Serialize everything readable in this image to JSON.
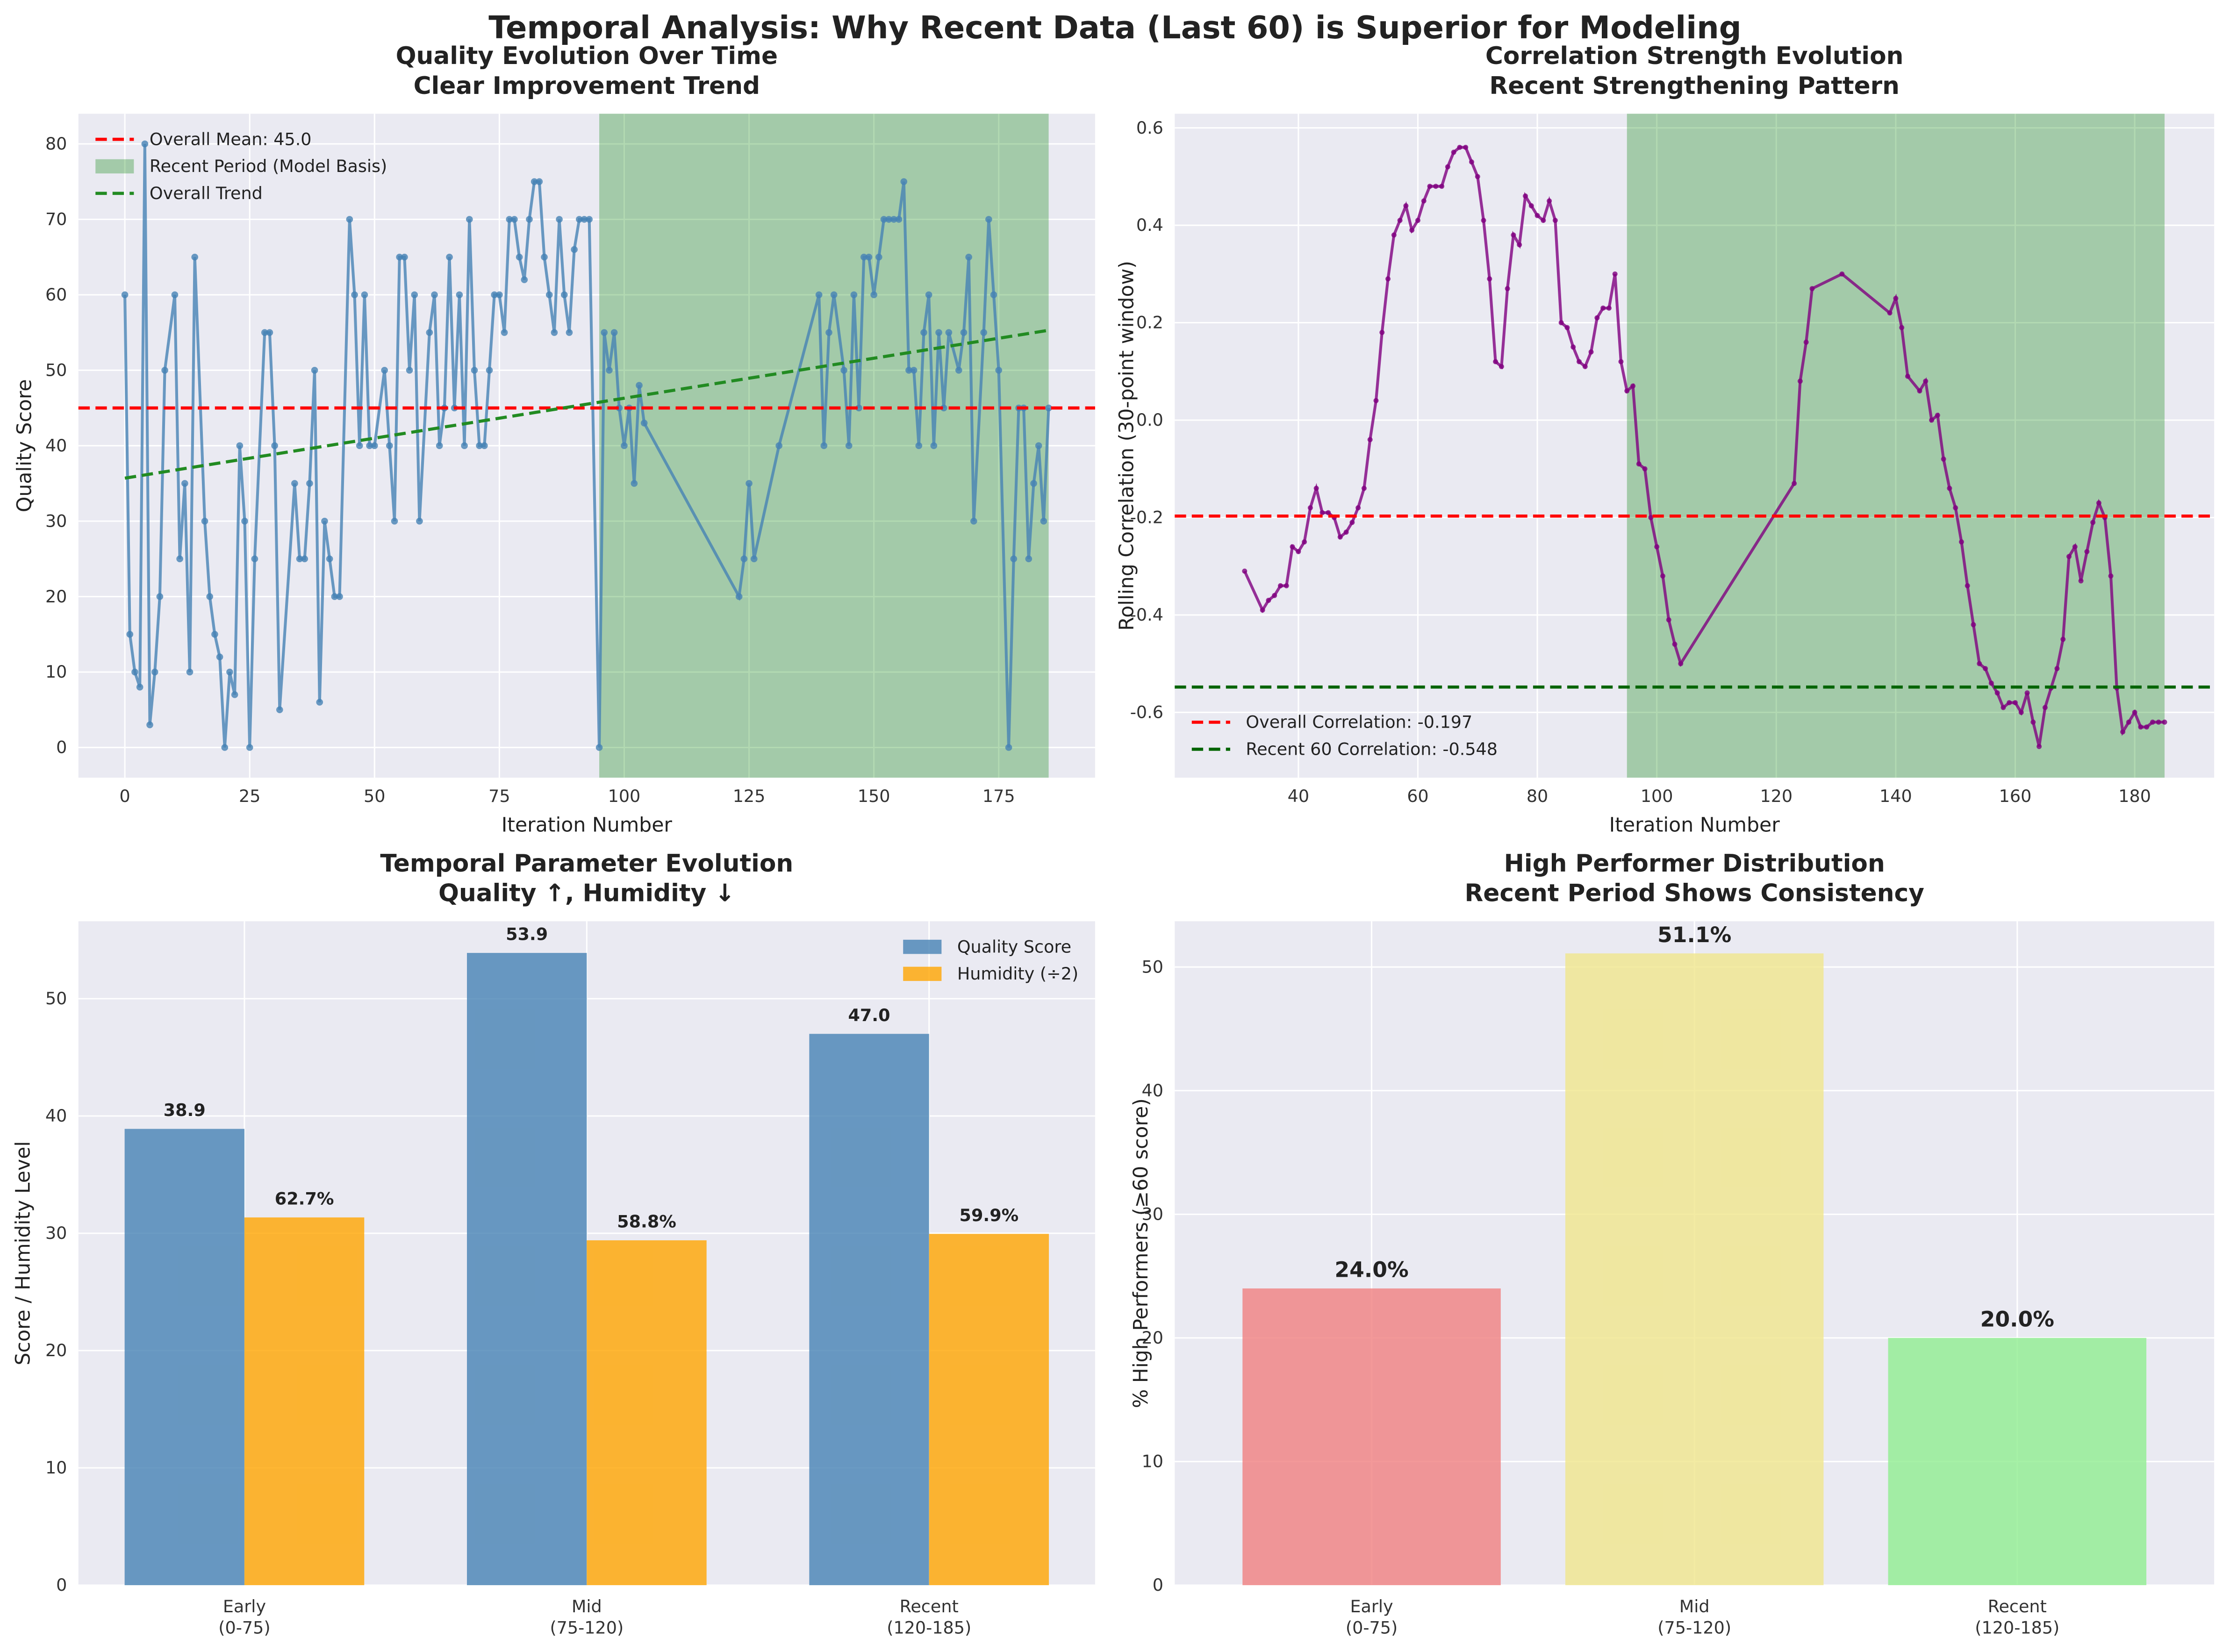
{
  "title": "Temporal Analysis: Why Recent Data (Last 60) is Superior for Modeling",
  "chart_data": [
    {
      "type": "line",
      "title": "Quality Evolution Over Time\nClear Improvement Trend",
      "xlabel": "Iteration Number",
      "ylabel": "Quality Score",
      "x": [
        0,
        1,
        2,
        3,
        4,
        5,
        6,
        7,
        8,
        10,
        11,
        12,
        13,
        14,
        16,
        17,
        18,
        19,
        20,
        21,
        22,
        23,
        24,
        25,
        26,
        28,
        29,
        30,
        31,
        34,
        35,
        36,
        37,
        38,
        39,
        40,
        41,
        42,
        43,
        45,
        46,
        47,
        48,
        49,
        50,
        52,
        53,
        54,
        55,
        56,
        57,
        58,
        59,
        61,
        62,
        63,
        64,
        65,
        66,
        67,
        68,
        69,
        70,
        71,
        72,
        73,
        74,
        75,
        76,
        77,
        78,
        79,
        80,
        81,
        82,
        83,
        84,
        85,
        86,
        87,
        88,
        89,
        90,
        91,
        92,
        93,
        95,
        96,
        97,
        98,
        99,
        100,
        101,
        102,
        103,
        104,
        123,
        124,
        125,
        126,
        131,
        139,
        140,
        141,
        142,
        144,
        145,
        146,
        147,
        148,
        149,
        150,
        151,
        152,
        153,
        154,
        155,
        156,
        157,
        158,
        159,
        160,
        161,
        162,
        163,
        164,
        165,
        167,
        168,
        169,
        170,
        172,
        173,
        174,
        175,
        177,
        178,
        179,
        180,
        181,
        182,
        183,
        184,
        185
      ],
      "values": [
        60,
        15,
        10,
        8,
        80,
        3,
        10,
        20,
        50,
        60,
        25,
        35,
        10,
        65,
        30,
        20,
        15,
        12,
        0,
        10,
        7,
        40,
        30,
        0,
        25,
        55,
        55,
        40,
        5,
        35,
        25,
        25,
        35,
        50,
        6,
        30,
        25,
        20,
        20,
        70,
        60,
        40,
        60,
        40,
        40,
        50,
        40,
        30,
        65,
        65,
        50,
        60,
        30,
        55,
        60,
        40,
        45,
        65,
        45,
        60,
        40,
        70,
        50,
        40,
        40,
        50,
        60,
        60,
        55,
        70,
        70,
        65,
        62,
        70,
        75,
        75,
        65,
        60,
        55,
        70,
        60,
        55,
        66,
        70,
        70,
        70,
        0,
        55,
        50,
        55,
        45,
        40,
        45,
        35,
        48,
        43,
        20,
        25,
        35,
        25,
        40,
        60,
        40,
        55,
        60,
        50,
        40,
        60,
        45,
        65,
        65,
        60,
        65,
        70,
        70,
        70,
        70,
        75,
        50,
        50,
        40,
        55,
        60,
        40,
        55,
        45,
        55,
        50,
        55,
        65,
        30,
        55,
        70,
        60,
        50,
        0,
        25,
        45,
        45,
        25,
        35,
        40,
        30,
        45
      ],
      "color": "steelblue",
      "hlines": [
        {
          "label": "Overall Mean: 45.0",
          "value": 45,
          "color": "red"
        }
      ],
      "spans": [
        {
          "label": "Recent Period (Model Basis)",
          "range": [
            95,
            185
          ],
          "color": "green"
        }
      ],
      "trend": {
        "label": "Overall Trend",
        "x": [
          0,
          185
        ],
        "values": [
          35.7,
          55.3
        ],
        "color": "forestgreen"
      },
      "xlim": [
        -9.3,
        194.3
      ],
      "ylim": [
        -4,
        84
      ],
      "xticks": [
        0,
        25,
        50,
        75,
        100,
        125,
        150,
        175
      ],
      "yticks": [
        0,
        10,
        20,
        30,
        40,
        50,
        60,
        70,
        80
      ],
      "grid": true,
      "legend": "upper left"
    },
    {
      "type": "line",
      "title": "Correlation Strength Evolution\nRecent Strengthening Pattern",
      "xlabel": "Iteration Number",
      "ylabel": "Rolling Correlation (30-point window)",
      "x": [
        31,
        34,
        35,
        36,
        37,
        38,
        39,
        40,
        41,
        42,
        43,
        44,
        45,
        46,
        47,
        48,
        49,
        50,
        51,
        52,
        53,
        54,
        55,
        56,
        57,
        58,
        59,
        60,
        61,
        62,
        63,
        64,
        65,
        66,
        67,
        68,
        69,
        70,
        71,
        72,
        73,
        74,
        75,
        76,
        77,
        78,
        79,
        80,
        81,
        82,
        83,
        84,
        85,
        86,
        87,
        88,
        89,
        90,
        91,
        92,
        93,
        94,
        95,
        96,
        97,
        98,
        99,
        100,
        101,
        102,
        103,
        104,
        123,
        124,
        125,
        126,
        131,
        139,
        140,
        141,
        142,
        144,
        145,
        146,
        147,
        148,
        149,
        150,
        151,
        152,
        153,
        154,
        155,
        156,
        157,
        158,
        159,
        160,
        161,
        162,
        163,
        164,
        165,
        166,
        167,
        168,
        169,
        170,
        171,
        172,
        173,
        174,
        175,
        176,
        177,
        178,
        179,
        180,
        181,
        182,
        183,
        184,
        185
      ],
      "values": [
        -0.31,
        -0.39,
        -0.37,
        -0.36,
        -0.34,
        -0.34,
        -0.26,
        -0.27,
        -0.25,
        -0.18,
        -0.14,
        -0.19,
        -0.19,
        -0.2,
        -0.24,
        -0.23,
        -0.21,
        -0.18,
        -0.14,
        -0.04,
        0.04,
        0.18,
        0.29,
        0.38,
        0.41,
        0.44,
        0.39,
        0.41,
        0.45,
        0.48,
        0.48,
        0.48,
        0.52,
        0.55,
        0.56,
        0.56,
        0.53,
        0.5,
        0.41,
        0.29,
        0.12,
        0.11,
        0.27,
        0.38,
        0.36,
        0.46,
        0.44,
        0.42,
        0.41,
        0.45,
        0.41,
        0.2,
        0.19,
        0.15,
        0.12,
        0.11,
        0.14,
        0.21,
        0.23,
        0.23,
        0.3,
        0.12,
        0.06,
        0.07,
        -0.09,
        -0.1,
        -0.2,
        -0.26,
        -0.32,
        -0.41,
        -0.46,
        -0.5,
        -0.13,
        0.08,
        0.16,
        0.27,
        0.3,
        0.22,
        0.25,
        0.19,
        0.09,
        0.06,
        0.08,
        0.0,
        0.01,
        -0.08,
        -0.14,
        -0.18,
        -0.25,
        -0.34,
        -0.42,
        -0.5,
        -0.51,
        -0.54,
        -0.56,
        -0.59,
        -0.58,
        -0.58,
        -0.6,
        -0.56,
        -0.62,
        -0.67,
        -0.59,
        -0.55,
        -0.51,
        -0.45,
        -0.28,
        -0.26,
        -0.33,
        -0.27,
        -0.21,
        -0.17,
        -0.2,
        -0.32,
        -0.55,
        -0.64,
        -0.62,
        -0.6,
        -0.63,
        -0.63,
        -0.62,
        -0.62,
        -0.62
      ],
      "color": "purple",
      "hlines": [
        {
          "label": "Overall Correlation: -0.197",
          "value": -0.197,
          "color": "red"
        },
        {
          "label": "Recent 60 Correlation: -0.548",
          "value": -0.548,
          "color": "darkgreen"
        }
      ],
      "spans": [
        {
          "range": [
            95,
            185
          ],
          "color": "green"
        }
      ],
      "xlim": [
        19.3,
        193.3
      ],
      "ylim": [
        -0.734,
        0.629
      ],
      "xticks": [
        40,
        60,
        80,
        100,
        120,
        140,
        160,
        180
      ],
      "yticks": [
        -0.6,
        -0.4,
        -0.2,
        {
          "value": 0,
          "label": "0.0"
        },
        0.2,
        0.4,
        0.6
      ],
      "grid": true,
      "legend": "lower left"
    },
    {
      "type": "grouped_bar",
      "title": "Temporal Parameter Evolution\nQuality ↑, Humidity ↓",
      "ylabel": "Score / Humidity Level",
      "categories": [
        "Early\n(0-75)",
        "Mid\n(75-120)",
        "Recent\n(120-185)"
      ],
      "series": [
        {
          "name": "Quality Score",
          "color": "steelblue",
          "values": [
            38.9,
            53.9,
            47.0
          ],
          "value_labels": [
            "38.9",
            "53.9",
            "47.0"
          ]
        },
        {
          "name": "Humidity (÷2)",
          "color": "orange",
          "values": [
            31.35,
            29.4,
            29.95
          ],
          "value_labels": [
            "62.7%",
            "58.8%",
            "59.9%"
          ]
        }
      ],
      "ylim": [
        0,
        56.6
      ],
      "yticks": [
        0,
        10,
        20,
        30,
        40,
        50
      ],
      "grid": true,
      "legend": "upper right"
    },
    {
      "type": "bar",
      "title": "High Performer Distribution\nRecent Period Shows Consistency",
      "ylabel": "% High Performers (≥60 score)",
      "categories": [
        "Early\n(0-75)",
        "Mid\n(75-120)",
        "Recent\n(120-185)"
      ],
      "values": [
        24.0,
        51.1,
        20.0
      ],
      "value_labels": [
        "24.0%",
        "51.1%",
        "20.0%"
      ],
      "colors": [
        "lightcoral",
        "khaki",
        "lightgreen"
      ],
      "ylim": [
        0,
        53.7
      ],
      "yticks": [
        0,
        10,
        20,
        30,
        40,
        50
      ],
      "grid": true
    }
  ]
}
